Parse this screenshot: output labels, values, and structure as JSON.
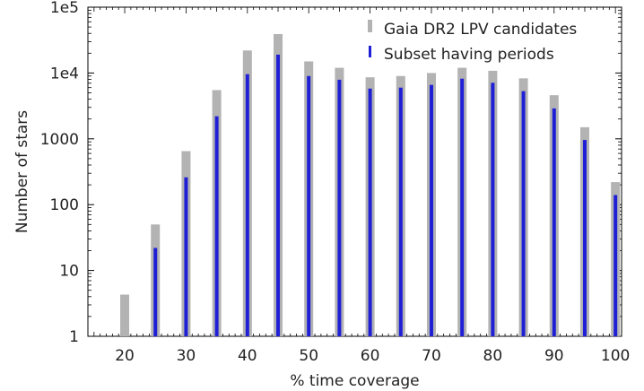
{
  "chart_data": {
    "type": "bar",
    "xlabel": "% time coverage",
    "ylabel": "Number of stars",
    "yscale": "log",
    "ylim": [
      1,
      100000
    ],
    "xlim": [
      14,
      101
    ],
    "x_ticks": [
      20,
      30,
      40,
      50,
      60,
      70,
      80,
      90,
      100
    ],
    "y_ticks": [
      {
        "value": 1,
        "label": "1"
      },
      {
        "value": 10,
        "label": "10"
      },
      {
        "value": 100,
        "label": "100"
      },
      {
        "value": 1000,
        "label": "1000"
      },
      {
        "value": 10000,
        "label": "1e4"
      },
      {
        "value": 100000,
        "label": "1e5"
      }
    ],
    "x": [
      20,
      25,
      30,
      35,
      40,
      45,
      50,
      55,
      60,
      65,
      70,
      75,
      80,
      85,
      90,
      95,
      100
    ],
    "series": [
      {
        "name": "Gaia DR2 LPV candidates",
        "color": "#b3b3b3",
        "values": [
          4.3,
          50,
          650,
          5500,
          22000,
          39000,
          15000,
          12000,
          8600,
          9000,
          10000,
          12000,
          10800,
          8300,
          4600,
          1500,
          220
        ]
      },
      {
        "name": "Subset having periods",
        "color": "#1f1fd6",
        "values": [
          1,
          22,
          260,
          2200,
          9600,
          19000,
          9000,
          7900,
          5800,
          6000,
          6600,
          8200,
          7100,
          5300,
          2900,
          960,
          140
        ]
      }
    ],
    "legend_position": "top-right",
    "grid": false
  }
}
